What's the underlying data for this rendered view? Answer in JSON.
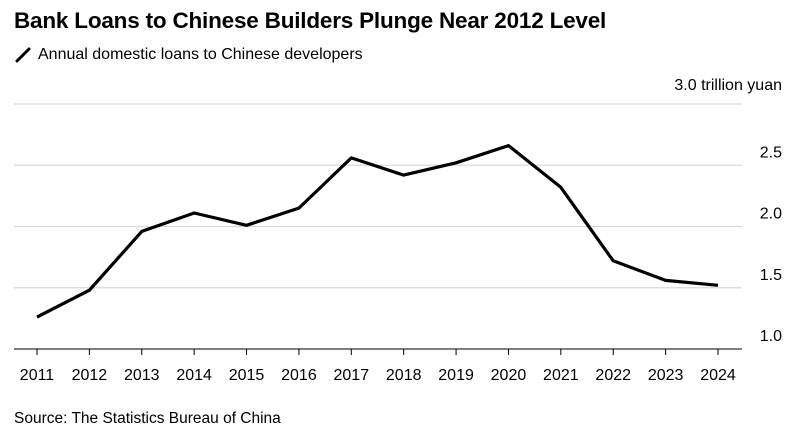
{
  "header": {
    "title": "Bank Loans to Chinese Builders Plunge Near 2012 Level"
  },
  "legend": {
    "label": "Annual domestic loans to Chinese developers",
    "icon": "line-swatch-icon"
  },
  "source": "Source: The Statistics Bureau of China",
  "chart_data": {
    "type": "line",
    "title": "Bank Loans to Chinese Builders Plunge Near 2012 Level",
    "xlabel": "",
    "ylabel": "",
    "y_unit_label": "3.0 trillion yuan",
    "x": [
      "2011",
      "2012",
      "2013",
      "2014",
      "2015",
      "2016",
      "2017",
      "2018",
      "2019",
      "2020",
      "2021",
      "2022",
      "2023",
      "2024"
    ],
    "series": [
      {
        "name": "Annual domestic loans to Chinese developers",
        "color": "#000000",
        "values": [
          1.26,
          1.48,
          1.96,
          2.11,
          2.01,
          2.15,
          2.56,
          2.42,
          2.52,
          2.66,
          2.32,
          1.72,
          1.56,
          1.52
        ]
      }
    ],
    "ylim": [
      1.0,
      3.0
    ],
    "yticks": [
      1.0,
      1.5,
      2.0,
      2.5,
      3.0
    ],
    "ytick_labels": [
      "1.0",
      "1.5",
      "2.0",
      "2.5",
      "3.0 trillion yuan"
    ],
    "grid": true,
    "legend_position": "top-left"
  }
}
